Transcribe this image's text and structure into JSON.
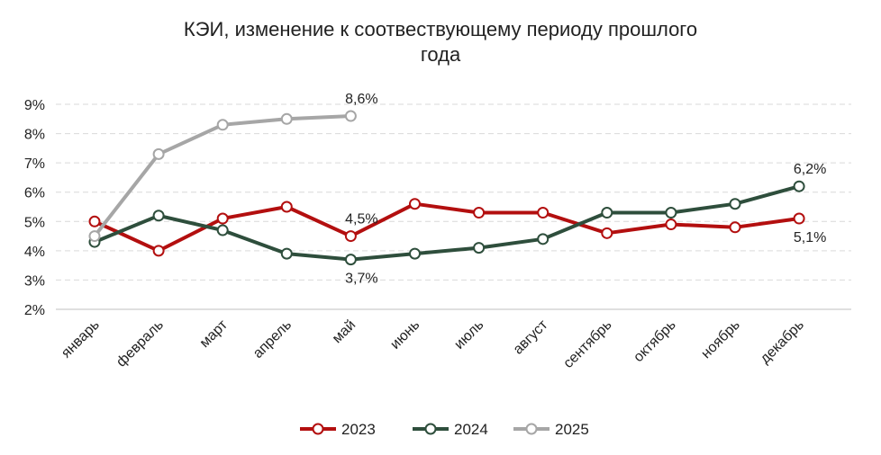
{
  "chart_data": {
    "type": "line",
    "title": "КЭИ, изменение к соотвествующему периоду прошлого года",
    "title_lines": [
      "КЭИ, изменение к соотвествующему периоду прошлого",
      "года"
    ],
    "categories": [
      "январь",
      "февраль",
      "март",
      "апрель",
      "май",
      "июнь",
      "июль",
      "август",
      "сентябрь",
      "октябрь",
      "ноябрь",
      "декабрь"
    ],
    "yticks": [
      "2%",
      "3%",
      "4%",
      "5%",
      "6%",
      "7%",
      "8%",
      "9%"
    ],
    "ylim": [
      2,
      9
    ],
    "grid": true,
    "legend_position": "bottom",
    "series": [
      {
        "name": "2023",
        "color": "#b30f0f",
        "values": [
          5.0,
          4.0,
          5.1,
          5.5,
          4.5,
          5.6,
          5.3,
          5.3,
          4.6,
          4.9,
          4.8,
          5.1
        ]
      },
      {
        "name": "2024",
        "color": "#2e4e3c",
        "values": [
          4.3,
          5.2,
          4.7,
          3.9,
          3.7,
          3.9,
          4.1,
          4.4,
          5.3,
          5.3,
          5.6,
          6.2
        ]
      },
      {
        "name": "2025",
        "color": "#a6a6a6",
        "values": [
          4.5,
          7.3,
          8.3,
          8.5,
          8.6,
          null,
          null,
          null,
          null,
          null,
          null,
          null
        ]
      }
    ],
    "annotations": [
      {
        "text": "8,6%",
        "series": 2,
        "index": 4,
        "pos": "above"
      },
      {
        "text": "4,5%",
        "series": 0,
        "index": 4,
        "pos": "above"
      },
      {
        "text": "3,7%",
        "series": 1,
        "index": 4,
        "pos": "below"
      },
      {
        "text": "6,2%",
        "series": 1,
        "index": 11,
        "pos": "above"
      },
      {
        "text": "5,1%",
        "series": 0,
        "index": 11,
        "pos": "below"
      }
    ]
  }
}
